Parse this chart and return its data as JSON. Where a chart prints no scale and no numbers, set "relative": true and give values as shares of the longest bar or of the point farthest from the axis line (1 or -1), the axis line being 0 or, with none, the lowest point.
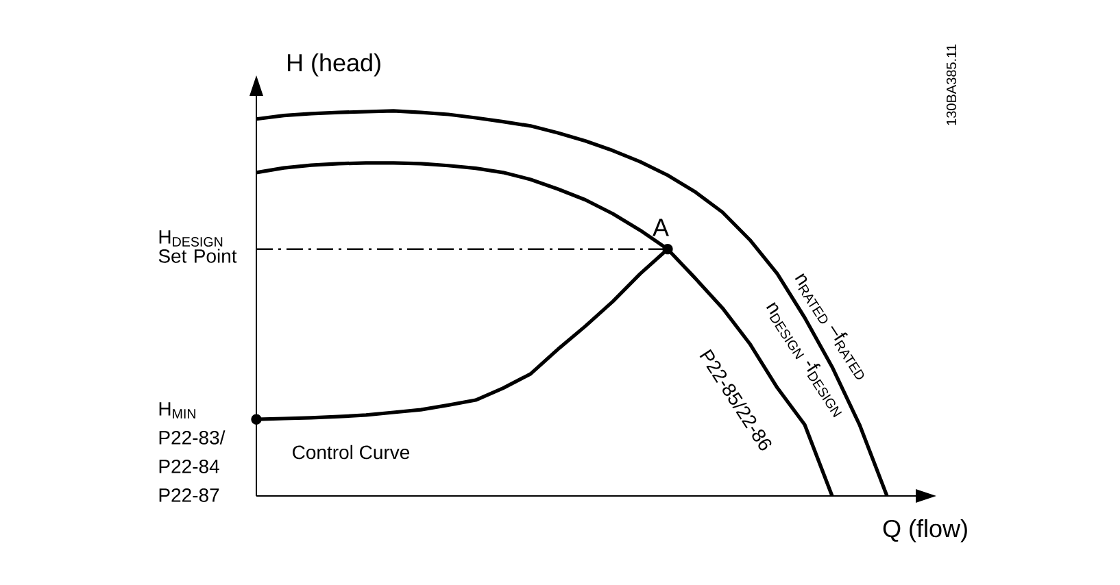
{
  "chart_data": {
    "type": "line",
    "relative": true,
    "line_style": "solid",
    "ylabel": "H (head)",
    "xlabel": "Q (flow)",
    "categories": [
      null,
      null,
      null,
      null,
      null,
      null,
      null,
      null,
      null,
      null,
      null,
      null,
      null,
      null,
      null,
      null,
      null,
      null,
      null,
      null,
      null,
      null,
      null,
      null
    ],
    "series": [
      {
        "name": "n$_{RATED}$ –f$_{RATED}$",
        "color": "#000000",
        "values": [
          0.979,
          0.988,
          0.993,
          0.996,
          0.998,
          1,
          0.996,
          0.991,
          0.982,
          0.972,
          0.961,
          0.943,
          0.922,
          0.897,
          0.868,
          0.833,
          0.79,
          0.737,
          0.665,
          0.577,
          0.463,
          0.335,
          0.185,
          0
        ]
      },
      {
        "name": "n$_{DESIGN}$ -f$_{DESIGN}$",
        "color": "#000000",
        "values": [
          0.84,
          0.852,
          0.859,
          0.863,
          0.865,
          0.865,
          0.863,
          0.858,
          0.851,
          0.84,
          0.822,
          0.797,
          0.769,
          0.733,
          0.69,
          0.641,
          0.566,
          0.488,
          0.395,
          0.281,
          0.185,
          0,
          null,
          null
        ]
      },
      {
        "name": "Control Curve",
        "color": "#000000",
        "values": [
          0.199,
          0.201,
          0.203,
          0.206,
          0.21,
          0.217,
          0.224,
          0.236,
          0.249,
          0.28,
          0.317,
          0.381,
          0.441,
          0.505,
          0.577,
          0.641,
          null,
          null,
          null,
          null,
          null,
          null,
          null,
          null
        ]
      }
    ],
    "ref_lines": [
      {
        "axis": "y",
        "value": 0.641,
        "label": "H$_{DESIGN}$ Set Point",
        "line_style": "dashdot",
        "color": "#000000"
      }
    ],
    "annotations": [
      "A",
      "H$_{MIN}$ P22-83/ P22-84 P22-87",
      "P22-85/22-86",
      "130BA385.11"
    ]
  }
}
